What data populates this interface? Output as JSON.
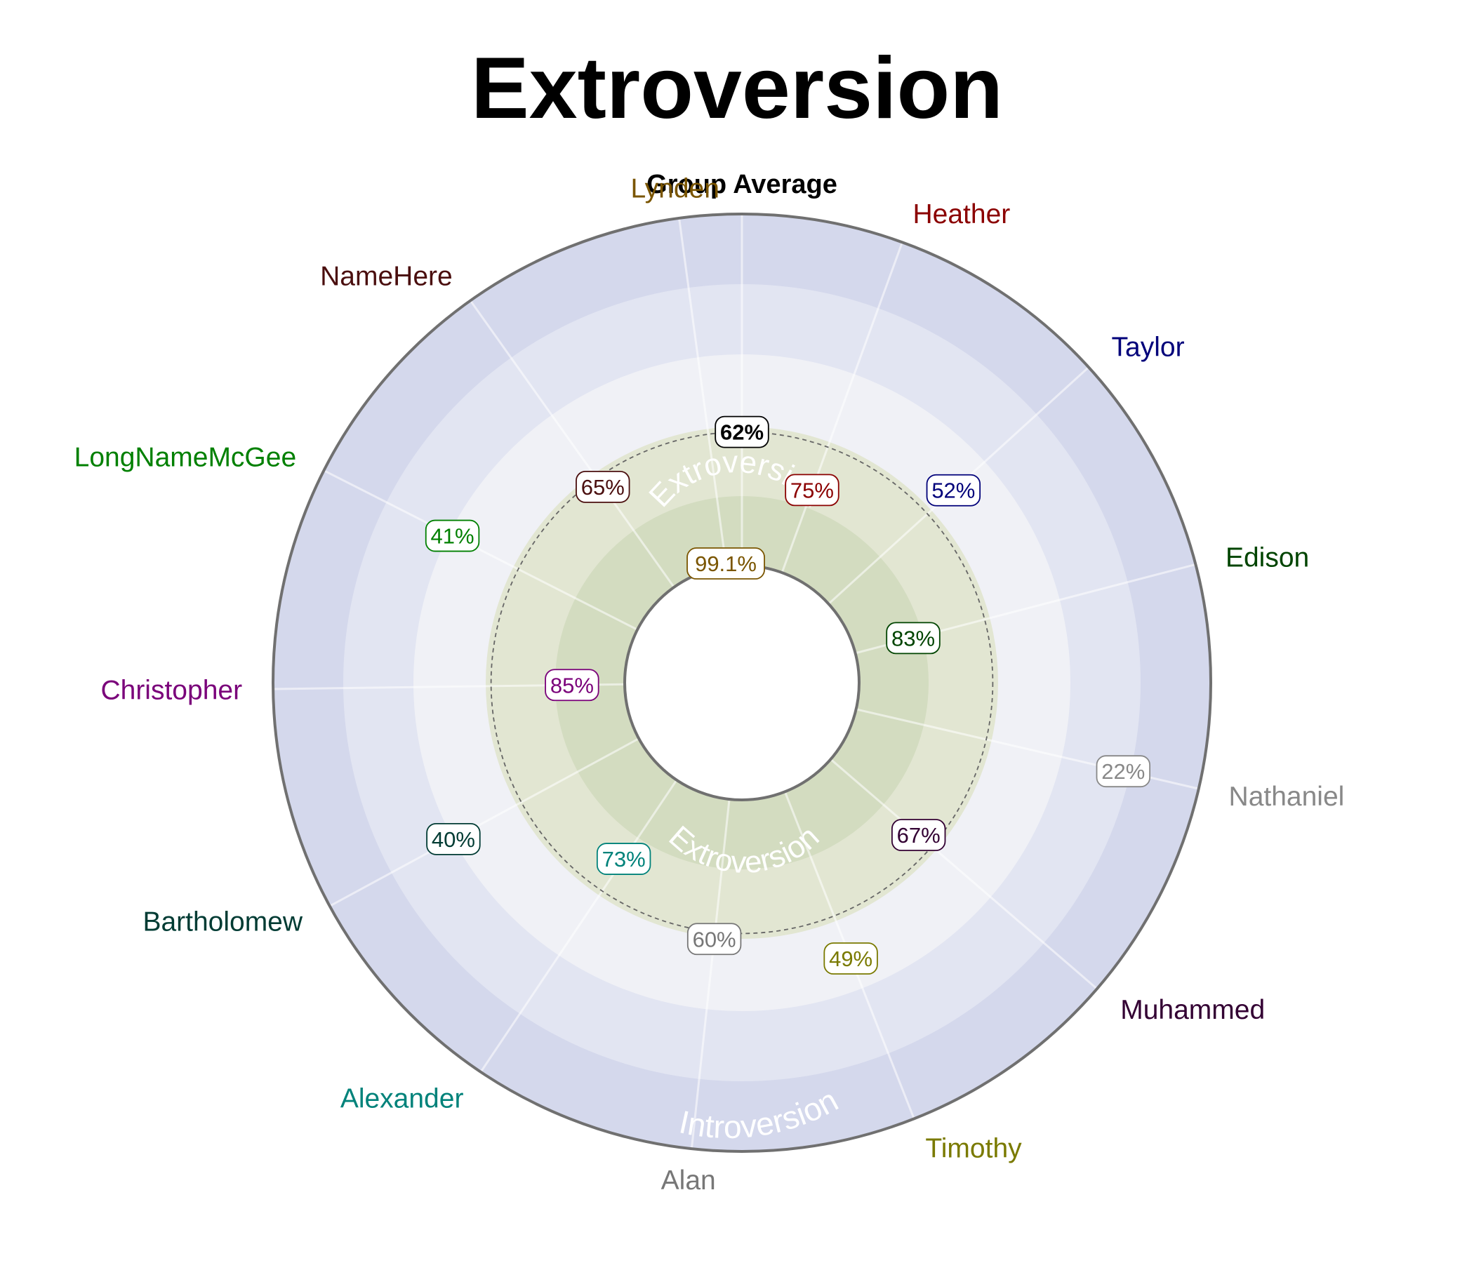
{
  "chart_data": {
    "type": "radial",
    "title": "Extroversion",
    "scale": {
      "min": 0,
      "max": 100,
      "outer_value": 0,
      "inner_value": 100,
      "reference_value": 62
    },
    "zone_labels": {
      "outer": "Introversion",
      "inner": "Extroversion"
    },
    "center": {
      "name": "Group Average",
      "label": "62%",
      "value": 62,
      "color": "#000000"
    },
    "people": [
      {
        "name": "Heather",
        "value": 75,
        "label": "75%",
        "color": "#8b0000"
      },
      {
        "name": "Taylor",
        "value": 52,
        "label": "52%",
        "color": "#00007a"
      },
      {
        "name": "Edison",
        "value": 83,
        "label": "83%",
        "color": "#004400"
      },
      {
        "name": "Nathaniel",
        "value": 22,
        "label": "22%",
        "color": "#888888"
      },
      {
        "name": "Muhammed",
        "value": 67,
        "label": "67%",
        "color": "#330033"
      },
      {
        "name": "Timothy",
        "value": 49,
        "label": "49%",
        "color": "#7a7a00"
      },
      {
        "name": "Alan",
        "value": 60,
        "label": "60%",
        "color": "#777777"
      },
      {
        "name": "Alexander",
        "value": 73,
        "label": "73%",
        "color": "#00827a"
      },
      {
        "name": "Bartholomew",
        "value": 40,
        "label": "40%",
        "color": "#003b33"
      },
      {
        "name": "Christopher",
        "value": 85,
        "label": "85%",
        "color": "#7a007a"
      },
      {
        "name": "LongNameMcGee",
        "value": 41,
        "label": "41%",
        "color": "#008000"
      },
      {
        "name": "NameHere",
        "value": 65,
        "label": "65%",
        "color": "#4a0e0e"
      },
      {
        "name": "Lynden",
        "value": 99.1,
        "label": "99.1%",
        "color": "#7a5500"
      }
    ],
    "colors": {
      "outer_band": "#d4d8ec",
      "mid_band": "#e2e5f2",
      "light_band": "#f0f1f6",
      "green_outer": "#e2e6d2",
      "green_inner": "#d3dcc0",
      "rim": "#707070"
    }
  }
}
